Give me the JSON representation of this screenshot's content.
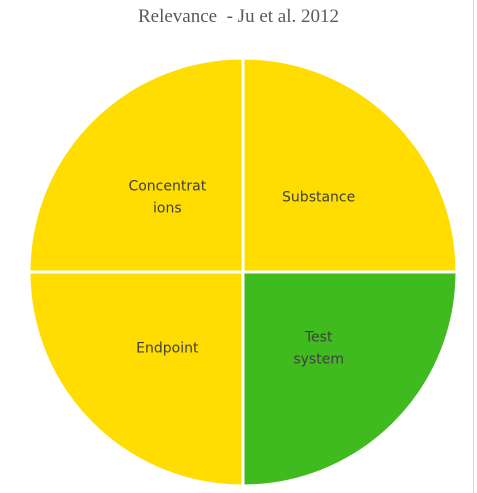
{
  "chart_data": {
    "type": "pie",
    "title": "Relevance  - Ju et al. 2012",
    "categories": [
      "Substance",
      "Test system",
      "Endpoint",
      "Concentrations"
    ],
    "slices": [
      {
        "label_lines": [
          "Substance"
        ],
        "value": 25,
        "color": "#FFDD00"
      },
      {
        "label_lines": [
          "Test",
          "system"
        ],
        "value": 25,
        "color": "#3FBA1F"
      },
      {
        "label_lines": [
          "Endpoint"
        ],
        "value": 25,
        "color": "#FFDD00"
      },
      {
        "label_lines": [
          "Concentrat",
          "ions"
        ],
        "value": 25,
        "color": "#FFDD00"
      }
    ],
    "legend": "none"
  },
  "colors": {
    "separator": "#ffffff",
    "title": "#595959",
    "label": "#404040"
  }
}
